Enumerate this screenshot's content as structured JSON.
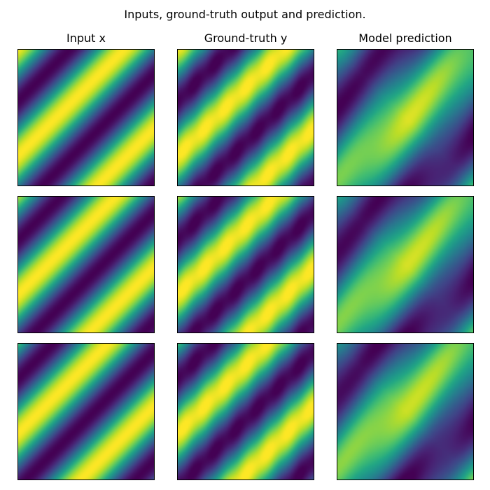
{
  "chart_data": {
    "type": "heatmap",
    "title": "Inputs, ground-truth output and prediction.",
    "colormap": "viridis",
    "axes_visible": false,
    "grid": "3x3",
    "columns": [
      {
        "title": "Input x",
        "kind": "input"
      },
      {
        "title": "Ground-truth y",
        "kind": "truth"
      },
      {
        "title": "Model prediction",
        "kind": "prediction"
      }
    ],
    "rows": 3
  }
}
